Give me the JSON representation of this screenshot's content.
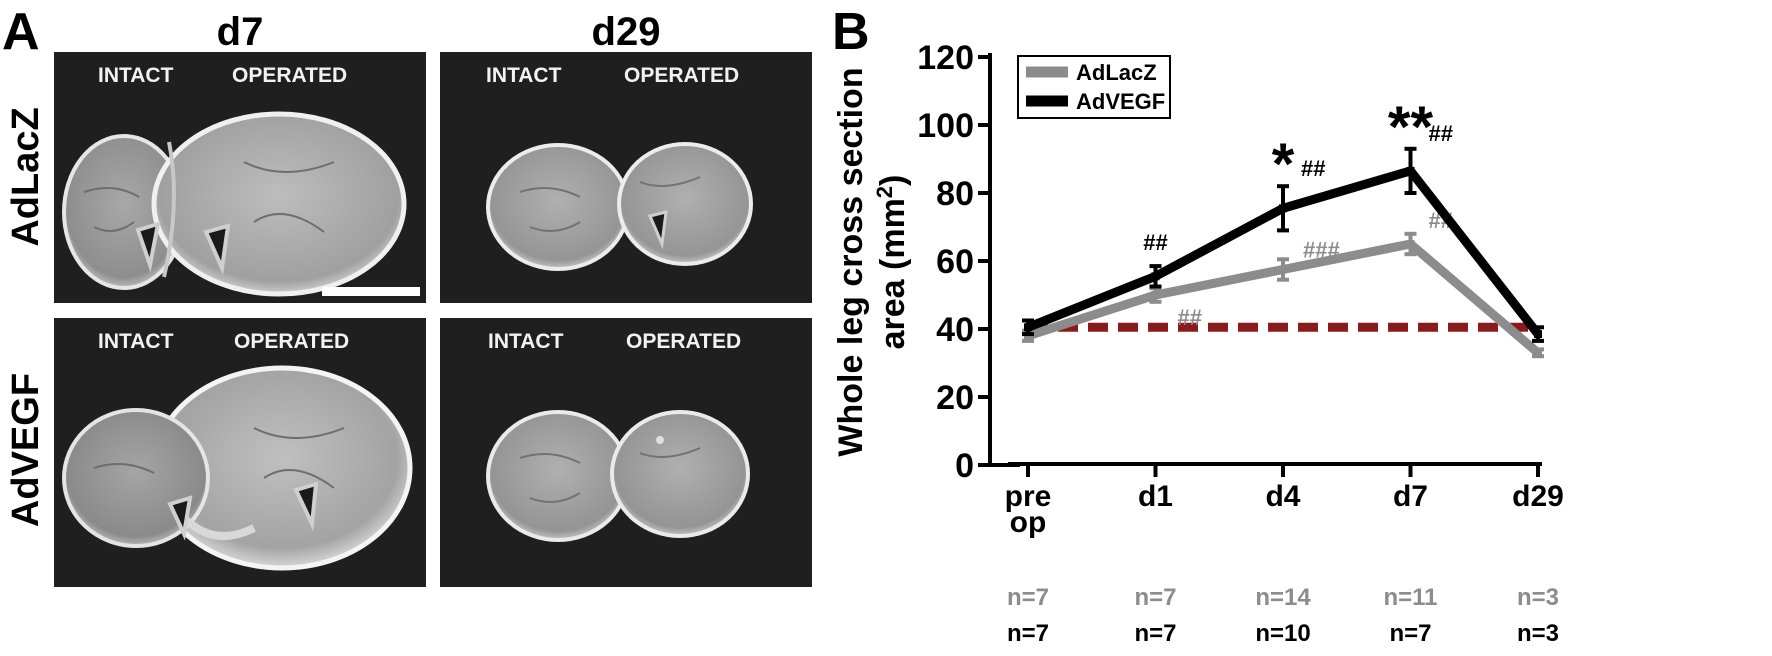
{
  "panel_a": {
    "letter": "A",
    "columns": [
      "d7",
      "d29"
    ],
    "rows": [
      "AdLacZ",
      "AdVEGF"
    ],
    "image_labels": {
      "left": "INTACT",
      "right": "OPERATED"
    }
  },
  "panel_b": {
    "letter": "B"
  },
  "chart_data": {
    "type": "line",
    "title": "",
    "xlabel": "",
    "ylabel": "Whole leg cross section area (mm²)",
    "ylabel_line1": "Whole leg cross section",
    "ylabel_line2": "area (mm",
    "ylabel_sup": "2",
    "ylabel_end": ")",
    "ylim": [
      0,
      120
    ],
    "yticks": [
      0,
      20,
      40,
      60,
      80,
      100,
      120
    ],
    "categories": [
      "pre op",
      "d1",
      "d4",
      "d7",
      "d29"
    ],
    "category_lines": [
      [
        "pre",
        "op"
      ],
      [
        "d1"
      ],
      [
        "d4"
      ],
      [
        "d7"
      ],
      [
        "d29"
      ]
    ],
    "legend_position": "top-left",
    "grid": false,
    "series": [
      {
        "name": "AdLacZ",
        "color": "#8c8c8c",
        "values": [
          38,
          50,
          57.5,
          65,
          33
        ],
        "errors": [
          1.5,
          2,
          3,
          3,
          1
        ],
        "annotations": [
          "",
          "##",
          "###",
          "##",
          ""
        ],
        "n": [
          "n=7",
          "n=7",
          "n=14",
          "n=11",
          "n=3"
        ]
      },
      {
        "name": "AdVEGF",
        "color": "#000000",
        "values": [
          40.5,
          55.5,
          75.5,
          86.5,
          38.5
        ],
        "errors": [
          2,
          3,
          6.5,
          6.5,
          2
        ],
        "annotations": [
          "",
          "##",
          "##",
          "##",
          ""
        ],
        "significance": [
          "",
          "",
          "*",
          "**",
          ""
        ],
        "n": [
          "n=7",
          "n=7",
          "n=10",
          "n=7",
          "n=3"
        ]
      }
    ],
    "baseline": {
      "value": 40.5,
      "color": "#8b1a1a",
      "style": "dashed"
    }
  }
}
